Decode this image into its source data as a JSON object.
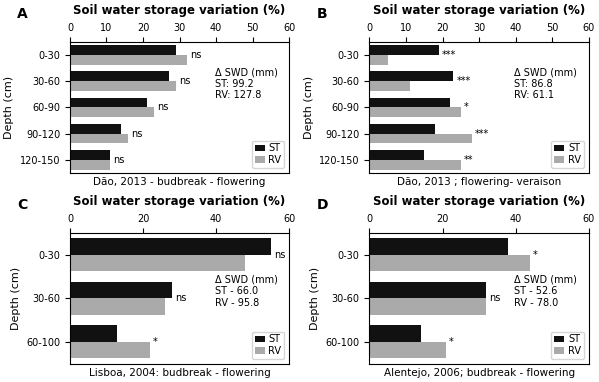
{
  "chart_data": [
    {
      "type": "bar",
      "orientation": "horizontal",
      "panel_label": "A",
      "title": "Soil water storage variation (%)",
      "y_label": "Depth (cm)",
      "x_label": "Dão, 2013 - budbreak - flowering",
      "categories": [
        "0-30",
        "30-60",
        "60-90",
        "90-120",
        "120-150"
      ],
      "series": [
        {
          "name": "ST",
          "color": "#111111",
          "values": [
            29,
            27,
            21,
            14,
            11
          ]
        },
        {
          "name": "RV",
          "color": "#aaaaaa",
          "values": [
            32,
            29,
            23,
            16,
            11
          ]
        }
      ],
      "significance": [
        "ns",
        "ns",
        "ns",
        "ns",
        "ns"
      ],
      "annotation": "Δ SWD (mm)\nST: 99.2\nRV: 127.8",
      "xlim": [
        0,
        60
      ],
      "xticks": [
        0,
        10,
        20,
        30,
        40,
        50,
        60
      ],
      "legend": "lower right"
    },
    {
      "type": "bar",
      "orientation": "horizontal",
      "panel_label": "B",
      "title": "Soil water storage variation (%)",
      "y_label": "Depth (cm)",
      "x_label": "Dão, 2013 ; flowering- veraison",
      "categories": [
        "0-30",
        "30-60",
        "60-90",
        "90-120",
        "120-150"
      ],
      "series": [
        {
          "name": "ST",
          "color": "#111111",
          "values": [
            19,
            23,
            22,
            18,
            15
          ]
        },
        {
          "name": "RV",
          "color": "#aaaaaa",
          "values": [
            5,
            11,
            25,
            28,
            25
          ]
        }
      ],
      "significance": [
        "***",
        "***",
        "*",
        "***",
        "**"
      ],
      "annotation": "Δ SWD (mm)\nST: 86.8\nRV: 61.1",
      "xlim": [
        0,
        60
      ],
      "xticks": [
        0,
        10,
        20,
        30,
        40,
        50,
        60
      ],
      "legend": "lower right"
    },
    {
      "type": "bar",
      "orientation": "horizontal",
      "panel_label": "C",
      "title": "Soil water storage variation (%)",
      "y_label": "Depth (cm)",
      "x_label": "Lisboa, 2004: budbreak - flowering",
      "categories": [
        "0-30",
        "30-60",
        "60-100"
      ],
      "series": [
        {
          "name": "ST",
          "color": "#111111",
          "values": [
            55,
            28,
            13
          ]
        },
        {
          "name": "RV",
          "color": "#aaaaaa",
          "values": [
            48,
            26,
            22
          ]
        }
      ],
      "significance": [
        "ns",
        "ns",
        "*"
      ],
      "annotation": "Δ SWD (mm)\nST - 66.0\nRV - 95.8",
      "xlim": [
        0,
        60
      ],
      "xticks": [
        0,
        20,
        40,
        60
      ],
      "legend": "lower right"
    },
    {
      "type": "bar",
      "orientation": "horizontal",
      "panel_label": "D",
      "title": "Soil water storage variation (%)",
      "y_label": "Depth (cm)",
      "x_label": "Alentejo, 2006; budbreak - flowering",
      "categories": [
        "0-30",
        "30-60",
        "60-100"
      ],
      "series": [
        {
          "name": "ST",
          "color": "#111111",
          "values": [
            38,
            32,
            14
          ]
        },
        {
          "name": "RV",
          "color": "#aaaaaa",
          "values": [
            44,
            32,
            21
          ]
        }
      ],
      "significance": [
        "*",
        "ns",
        "*"
      ],
      "annotation": "Δ SWD (mm)\nST - 52.6\nRV - 78.0",
      "xlim": [
        0,
        60
      ],
      "xticks": [
        0,
        20,
        40,
        60
      ],
      "legend": "lower right"
    }
  ]
}
